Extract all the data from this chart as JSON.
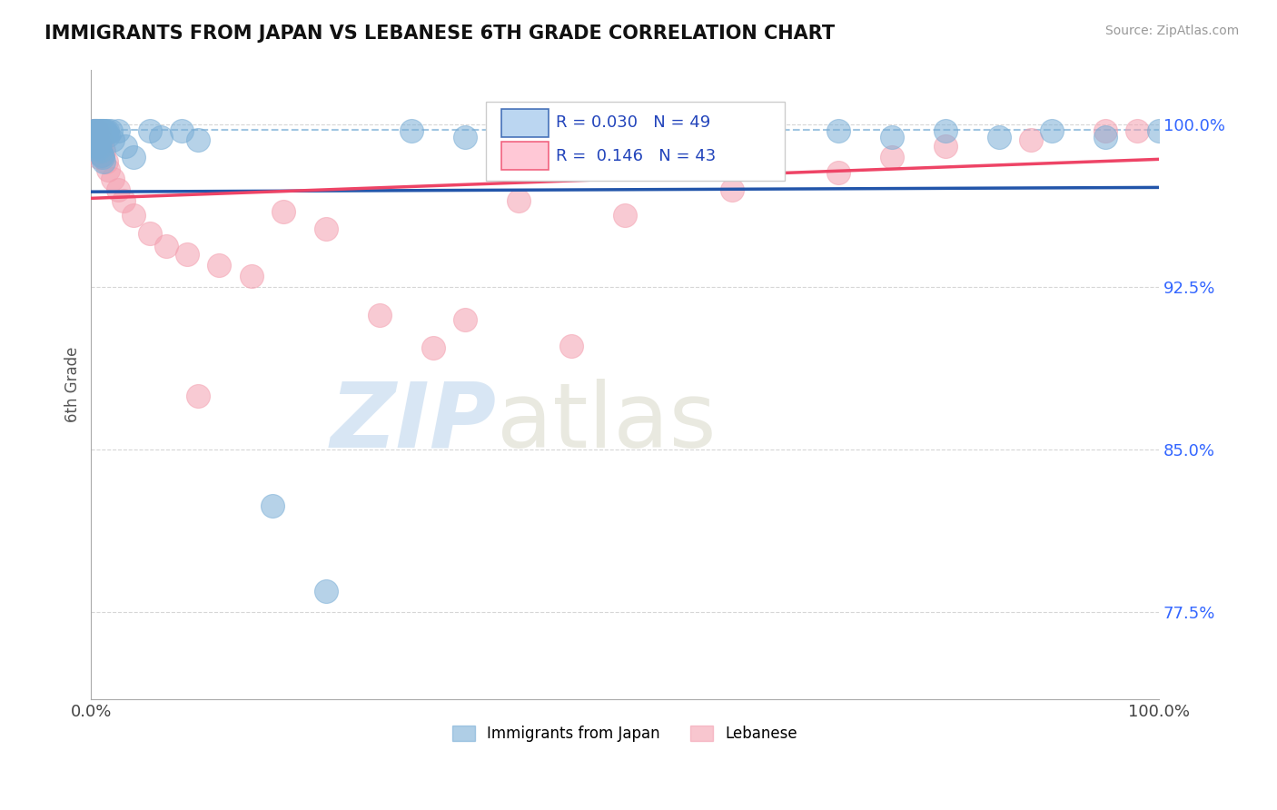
{
  "title": "IMMIGRANTS FROM JAPAN VS LEBANESE 6TH GRADE CORRELATION CHART",
  "source": "Source: ZipAtlas.com",
  "ylabel": "6th Grade",
  "xmin": 0.0,
  "xmax": 1.0,
  "ymin": 0.735,
  "ymax": 1.025,
  "yticks": [
    0.775,
    0.85,
    0.925,
    1.0
  ],
  "ytick_labels": [
    "77.5%",
    "85.0%",
    "92.5%",
    "100.0%"
  ],
  "xtick_positions": [
    0.0,
    1.0
  ],
  "xtick_labels": [
    "0.0%",
    "100.0%"
  ],
  "color_japan": "#7AAED6",
  "color_lebanese": "#F4A0B0",
  "color_japan_line": "#2255AA",
  "color_lebanese_line": "#EE4466",
  "color_japan_fill": "#AACCEE",
  "color_lebanese_fill": "#FFBBCC",
  "dashed_line_y": 0.9975,
  "japan_line_x0": 0.0,
  "japan_line_y0": 0.969,
  "japan_line_x1": 1.0,
  "japan_line_y1": 0.971,
  "lebanese_line_x0": 0.0,
  "lebanese_line_y0": 0.966,
  "lebanese_line_x1": 1.0,
  "lebanese_line_y1": 0.984,
  "japan_scatter_x": [
    0.002,
    0.003,
    0.003,
    0.004,
    0.004,
    0.005,
    0.005,
    0.006,
    0.006,
    0.007,
    0.007,
    0.008,
    0.008,
    0.009,
    0.009,
    0.01,
    0.01,
    0.011,
    0.011,
    0.012,
    0.012,
    0.013,
    0.014,
    0.015,
    0.016,
    0.018,
    0.02,
    0.025,
    0.032,
    0.04,
    0.055,
    0.065,
    0.085,
    0.1,
    0.3,
    0.35,
    0.42,
    0.5,
    0.55,
    0.62,
    0.7,
    0.75,
    0.8,
    0.85,
    0.9,
    0.95,
    1.0,
    0.17,
    0.22
  ],
  "japan_scatter_y": [
    0.997,
    0.997,
    0.994,
    0.997,
    0.993,
    0.997,
    0.991,
    0.997,
    0.99,
    0.997,
    0.989,
    0.997,
    0.992,
    0.997,
    0.988,
    0.997,
    0.986,
    0.997,
    0.985,
    0.997,
    0.983,
    0.997,
    0.996,
    0.997,
    0.995,
    0.997,
    0.993,
    0.997,
    0.99,
    0.985,
    0.997,
    0.994,
    0.997,
    0.993,
    0.997,
    0.994,
    0.997,
    0.994,
    0.997,
    0.994,
    0.997,
    0.994,
    0.997,
    0.994,
    0.997,
    0.994,
    0.997,
    0.824,
    0.785
  ],
  "lebanese_scatter_x": [
    0.002,
    0.003,
    0.003,
    0.004,
    0.004,
    0.005,
    0.005,
    0.006,
    0.006,
    0.007,
    0.007,
    0.008,
    0.009,
    0.01,
    0.011,
    0.012,
    0.014,
    0.016,
    0.02,
    0.025,
    0.03,
    0.04,
    0.055,
    0.07,
    0.09,
    0.12,
    0.15,
    0.18,
    0.22,
    0.27,
    0.32,
    0.4,
    0.5,
    0.6,
    0.7,
    0.75,
    0.8,
    0.88,
    0.95,
    0.98,
    0.1,
    0.35,
    0.45
  ],
  "lebanese_scatter_y": [
    0.997,
    0.997,
    0.993,
    0.997,
    0.991,
    0.997,
    0.989,
    0.997,
    0.987,
    0.997,
    0.985,
    0.991,
    0.988,
    0.992,
    0.986,
    0.988,
    0.983,
    0.979,
    0.975,
    0.97,
    0.965,
    0.958,
    0.95,
    0.944,
    0.94,
    0.935,
    0.93,
    0.96,
    0.952,
    0.912,
    0.897,
    0.965,
    0.958,
    0.97,
    0.978,
    0.985,
    0.99,
    0.993,
    0.997,
    0.997,
    0.875,
    0.91,
    0.898
  ]
}
